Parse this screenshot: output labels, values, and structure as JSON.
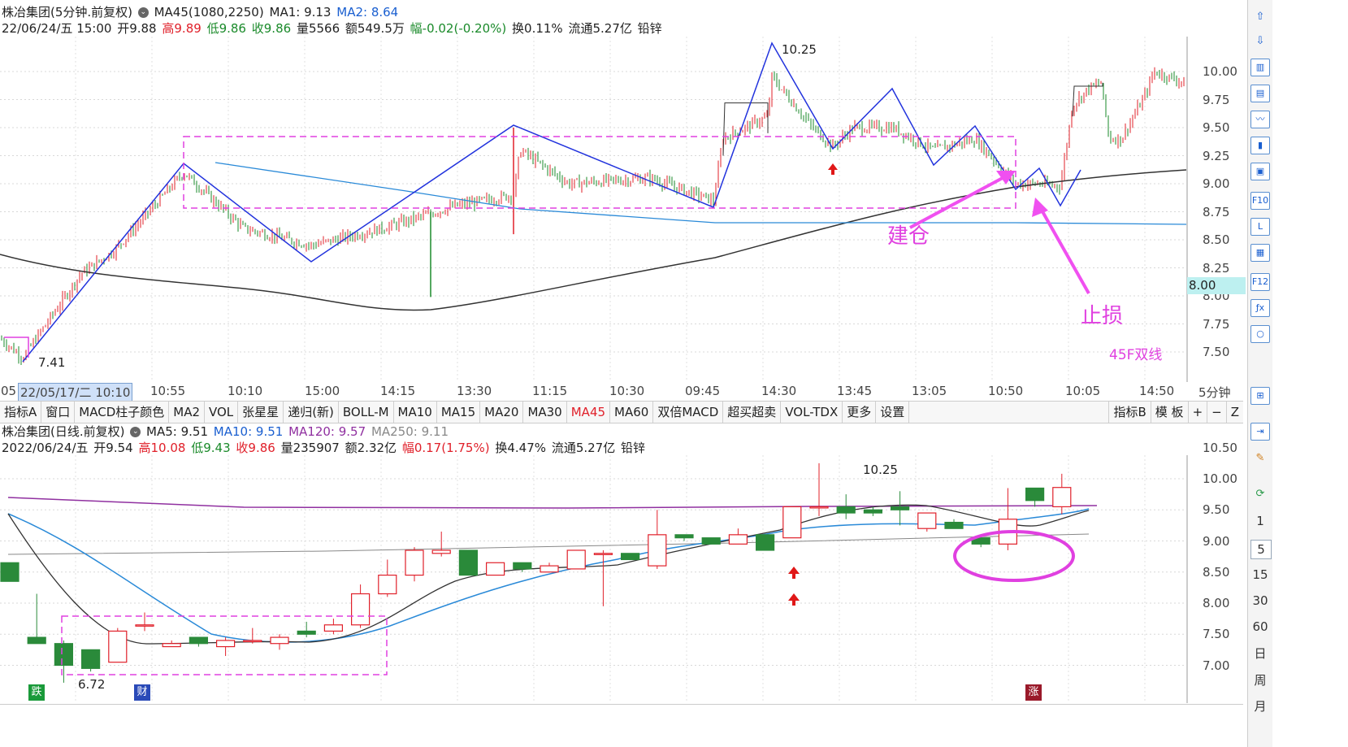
{
  "upper": {
    "title": "株冶集团(5分钟.前复权)",
    "ma_name": "MA45(1080,2250)",
    "ma1": "MA1: 9.13",
    "ma2": "MA2: 8.64",
    "info": {
      "date": "22/06/24/五 15:00",
      "open": "开9.88",
      "high": "高9.89",
      "low": "低9.86",
      "close": "收9.86",
      "volume": "量5566",
      "amount": "额549.5万",
      "change": "幅-0.02(-0.20%)",
      "turnover": "换0.11%",
      "float": "流通5.27亿",
      "industry": "铅锌"
    },
    "y_ticks": [
      "10.00",
      "9.75",
      "9.50",
      "9.25",
      "9.00",
      "8.75",
      "8.50",
      "8.25",
      "8.00",
      "7.75",
      "7.50"
    ],
    "price_tag": "8.00",
    "high_label": "10.25",
    "low_label": "7.41",
    "annot_build": "建仓",
    "annot_stop": "止损",
    "annot_line": "45F双线"
  },
  "time_axis": {
    "start": "05",
    "cursor": "22/05/17/二 10:10",
    "ticks": [
      "10:55",
      "10:10",
      "15:00",
      "14:15",
      "13:30",
      "11:15",
      "10:30",
      "09:45",
      "14:30",
      "13:45",
      "13:05",
      "10:50",
      "10:05",
      "14:50"
    ],
    "period": "5分钟"
  },
  "toolbar": {
    "tabs": [
      "指标A",
      "窗口",
      "MACD柱子颜色",
      "MA2",
      "VOL",
      "张星星",
      "递归(新)",
      "BOLL-M",
      "MA10",
      "MA15",
      "MA20",
      "MA30",
      "MA45",
      "MA60",
      "双倍MACD",
      "超买超卖",
      "VOL-TDX",
      "更多",
      "设置"
    ],
    "active": "MA45",
    "right": [
      "指标B",
      "模 板",
      "+",
      "−",
      "Z"
    ]
  },
  "lower": {
    "title": "株冶集团(日线.前复权)",
    "ma5": "MA5: 9.51",
    "ma10": "MA10: 9.51",
    "ma120": "MA120: 9.57",
    "ma250": "MA250: 9.11",
    "info": {
      "date": "2022/06/24/五",
      "open": "开9.54",
      "high": "高10.08",
      "low": "低9.43",
      "close": "收9.86",
      "volume": "量235907",
      "amount": "额2.32亿",
      "change": "幅0.17(1.75%)",
      "turnover": "换4.47%",
      "float": "流通5.27亿",
      "industry": "铅锌"
    },
    "y_ticks": [
      "10.50",
      "10.00",
      "9.50",
      "9.00",
      "8.50",
      "8.00",
      "7.50",
      "7.00"
    ],
    "high_label": "10.25",
    "low_label": "6.72",
    "markers": [
      "跌",
      "财",
      "涨"
    ],
    "candles": [
      [
        8.65,
        8.35,
        8.65,
        8.35
      ],
      [
        7.45,
        7.35,
        8.15,
        7.35
      ],
      [
        7.35,
        7.0,
        7.4,
        6.72
      ],
      [
        7.25,
        6.95,
        7.25,
        6.9
      ],
      [
        7.05,
        7.55,
        7.6,
        7.05
      ],
      [
        7.65,
        7.65,
        7.85,
        7.55
      ],
      [
        7.3,
        7.35,
        7.4,
        7.3
      ],
      [
        7.45,
        7.35,
        7.45,
        7.3
      ],
      [
        7.3,
        7.4,
        7.45,
        7.15
      ],
      [
        7.4,
        7.4,
        7.6,
        7.35
      ],
      [
        7.35,
        7.45,
        7.5,
        7.25
      ],
      [
        7.55,
        7.5,
        7.7,
        7.45
      ],
      [
        7.55,
        7.65,
        7.75,
        7.5
      ],
      [
        7.65,
        8.15,
        8.3,
        7.6
      ],
      [
        8.15,
        8.45,
        8.7,
        8.1
      ],
      [
        8.45,
        8.85,
        8.9,
        8.35
      ],
      [
        8.8,
        8.85,
        9.15,
        8.75
      ],
      [
        8.85,
        8.45,
        8.85,
        8.45
      ],
      [
        8.45,
        8.65,
        8.65,
        8.45
      ],
      [
        8.65,
        8.55,
        8.65,
        8.5
      ],
      [
        8.5,
        8.6,
        8.65,
        8.5
      ],
      [
        8.55,
        8.85,
        8.85,
        8.55
      ],
      [
        8.8,
        8.8,
        8.85,
        7.95
      ],
      [
        8.8,
        8.7,
        8.8,
        8.7
      ],
      [
        8.6,
        9.1,
        9.5,
        8.55
      ],
      [
        9.1,
        9.05,
        9.1,
        9.0
      ],
      [
        9.05,
        8.95,
        9.05,
        8.95
      ],
      [
        8.95,
        9.1,
        9.2,
        8.95
      ],
      [
        9.1,
        8.85,
        9.1,
        8.85
      ],
      [
        9.05,
        9.55,
        9.55,
        9.05
      ],
      [
        9.55,
        9.55,
        10.25,
        9.4
      ],
      [
        9.55,
        9.45,
        9.75,
        9.35
      ],
      [
        9.5,
        9.45,
        9.55,
        9.4
      ],
      [
        9.55,
        9.5,
        9.8,
        9.25
      ],
      [
        9.2,
        9.45,
        9.45,
        9.15
      ],
      [
        9.3,
        9.2,
        9.35,
        9.2
      ],
      [
        9.05,
        8.95,
        9.05,
        8.9
      ],
      [
        8.95,
        9.35,
        9.85,
        8.85
      ],
      [
        9.85,
        9.65,
        9.85,
        9.55
      ],
      [
        9.55,
        9.86,
        10.08,
        9.43
      ]
    ]
  }
}
